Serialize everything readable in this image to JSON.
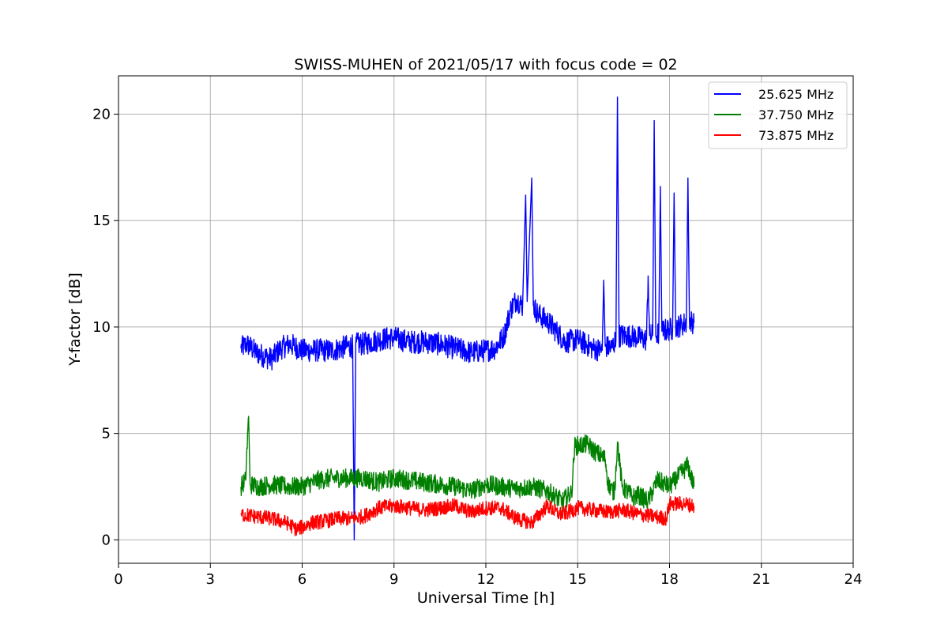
{
  "chart_data": {
    "type": "line",
    "title": "SWISS-MUHEN of 2021/05/17 with focus code = 02",
    "xlabel": "Universal Time [h]",
    "ylabel": "Y-factor [dB]",
    "xlim": [
      0,
      24
    ],
    "ylim": [
      -1.1,
      21.8
    ],
    "xticks": [
      0,
      3,
      6,
      9,
      12,
      15,
      18,
      21,
      24
    ],
    "yticks": [
      0,
      5,
      10,
      15,
      20
    ],
    "grid": true,
    "legend_position": "top-right",
    "series": [
      {
        "name": "25.625 MHz",
        "color": "#0000ff",
        "points": [
          [
            4.0,
            9.0
          ],
          [
            4.2,
            9.2
          ],
          [
            4.5,
            8.8
          ],
          [
            4.8,
            8.6
          ],
          [
            5.0,
            8.5
          ],
          [
            5.3,
            9.0
          ],
          [
            5.6,
            9.2
          ],
          [
            6.0,
            8.9
          ],
          [
            6.5,
            8.9
          ],
          [
            7.0,
            8.9
          ],
          [
            7.5,
            9.1
          ],
          [
            7.65,
            9.1
          ],
          [
            7.7,
            0.0
          ],
          [
            7.75,
            9.2
          ],
          [
            8.0,
            9.2
          ],
          [
            8.5,
            9.4
          ],
          [
            9.0,
            9.5
          ],
          [
            9.5,
            9.3
          ],
          [
            10.0,
            9.3
          ],
          [
            10.5,
            9.2
          ],
          [
            11.0,
            9.0
          ],
          [
            11.5,
            8.8
          ],
          [
            12.0,
            8.9
          ],
          [
            12.3,
            9.0
          ],
          [
            12.6,
            9.6
          ],
          [
            12.8,
            10.8
          ],
          [
            13.0,
            11.3
          ],
          [
            13.2,
            11.0
          ],
          [
            13.3,
            16.2
          ],
          [
            13.35,
            11.2
          ],
          [
            13.5,
            17.0
          ],
          [
            13.55,
            11.0
          ],
          [
            13.7,
            10.6
          ],
          [
            14.0,
            10.3
          ],
          [
            14.3,
            9.8
          ],
          [
            14.6,
            9.3
          ],
          [
            15.0,
            9.4
          ],
          [
            15.5,
            9.0
          ],
          [
            15.8,
            8.9
          ],
          [
            15.85,
            12.2
          ],
          [
            15.9,
            9.1
          ],
          [
            16.1,
            9.0
          ],
          [
            16.25,
            9.4
          ],
          [
            16.3,
            20.8
          ],
          [
            16.35,
            9.6
          ],
          [
            16.6,
            9.6
          ],
          [
            17.0,
            9.5
          ],
          [
            17.25,
            9.4
          ],
          [
            17.3,
            12.4
          ],
          [
            17.35,
            9.6
          ],
          [
            17.45,
            9.6
          ],
          [
            17.5,
            19.7
          ],
          [
            17.55,
            9.6
          ],
          [
            17.65,
            9.7
          ],
          [
            17.7,
            16.6
          ],
          [
            17.75,
            9.8
          ],
          [
            18.0,
            9.9
          ],
          [
            18.1,
            9.9
          ],
          [
            18.15,
            16.3
          ],
          [
            18.2,
            10.0
          ],
          [
            18.4,
            10.1
          ],
          [
            18.55,
            10.2
          ],
          [
            18.6,
            17.0
          ],
          [
            18.65,
            10.3
          ],
          [
            18.8,
            10.2
          ]
        ]
      },
      {
        "name": "37.750 MHz",
        "color": "#008000",
        "points": [
          [
            4.0,
            2.5
          ],
          [
            4.15,
            2.8
          ],
          [
            4.25,
            5.8
          ],
          [
            4.3,
            2.6
          ],
          [
            4.6,
            2.5
          ],
          [
            5.0,
            2.6
          ],
          [
            5.5,
            2.5
          ],
          [
            6.0,
            2.5
          ],
          [
            6.5,
            2.8
          ],
          [
            7.0,
            2.9
          ],
          [
            7.5,
            2.9
          ],
          [
            8.0,
            2.9
          ],
          [
            8.5,
            2.7
          ],
          [
            9.0,
            2.9
          ],
          [
            9.5,
            2.8
          ],
          [
            10.0,
            2.7
          ],
          [
            10.5,
            2.6
          ],
          [
            11.0,
            2.5
          ],
          [
            11.5,
            2.3
          ],
          [
            12.0,
            2.6
          ],
          [
            12.5,
            2.5
          ],
          [
            13.0,
            2.4
          ],
          [
            13.5,
            2.5
          ],
          [
            14.0,
            2.3
          ],
          [
            14.5,
            1.8
          ],
          [
            14.8,
            2.2
          ],
          [
            14.9,
            4.4
          ],
          [
            15.3,
            4.5
          ],
          [
            15.6,
            4.1
          ],
          [
            15.9,
            3.8
          ],
          [
            16.0,
            2.6
          ],
          [
            16.2,
            2.2
          ],
          [
            16.3,
            4.6
          ],
          [
            16.45,
            2.5
          ],
          [
            16.8,
            2.0
          ],
          [
            17.0,
            2.1
          ],
          [
            17.3,
            1.8
          ],
          [
            17.6,
            2.8
          ],
          [
            18.0,
            2.5
          ],
          [
            18.3,
            3.0
          ],
          [
            18.6,
            3.5
          ],
          [
            18.8,
            2.5
          ]
        ]
      },
      {
        "name": "73.875 MHz",
        "color": "#ff0000",
        "points": [
          [
            4.0,
            1.2
          ],
          [
            4.5,
            1.1
          ],
          [
            5.0,
            1.0
          ],
          [
            5.5,
            0.8
          ],
          [
            5.8,
            0.5
          ],
          [
            6.0,
            0.6
          ],
          [
            6.3,
            0.8
          ],
          [
            6.8,
            0.9
          ],
          [
            7.2,
            1.0
          ],
          [
            7.6,
            1.0
          ],
          [
            8.0,
            1.1
          ],
          [
            8.5,
            1.5
          ],
          [
            9.0,
            1.6
          ],
          [
            9.5,
            1.5
          ],
          [
            10.0,
            1.4
          ],
          [
            10.5,
            1.5
          ],
          [
            11.0,
            1.6
          ],
          [
            11.5,
            1.3
          ],
          [
            12.0,
            1.5
          ],
          [
            12.5,
            1.5
          ],
          [
            13.0,
            1.0
          ],
          [
            13.5,
            0.8
          ],
          [
            14.0,
            1.6
          ],
          [
            14.4,
            1.2
          ],
          [
            14.7,
            1.3
          ],
          [
            15.0,
            1.5
          ],
          [
            15.5,
            1.4
          ],
          [
            16.0,
            1.3
          ],
          [
            16.5,
            1.4
          ],
          [
            17.0,
            1.2
          ],
          [
            17.5,
            1.1
          ],
          [
            17.9,
            1.0
          ],
          [
            18.0,
            1.7
          ],
          [
            18.5,
            1.7
          ],
          [
            18.8,
            1.6
          ]
        ]
      }
    ]
  }
}
